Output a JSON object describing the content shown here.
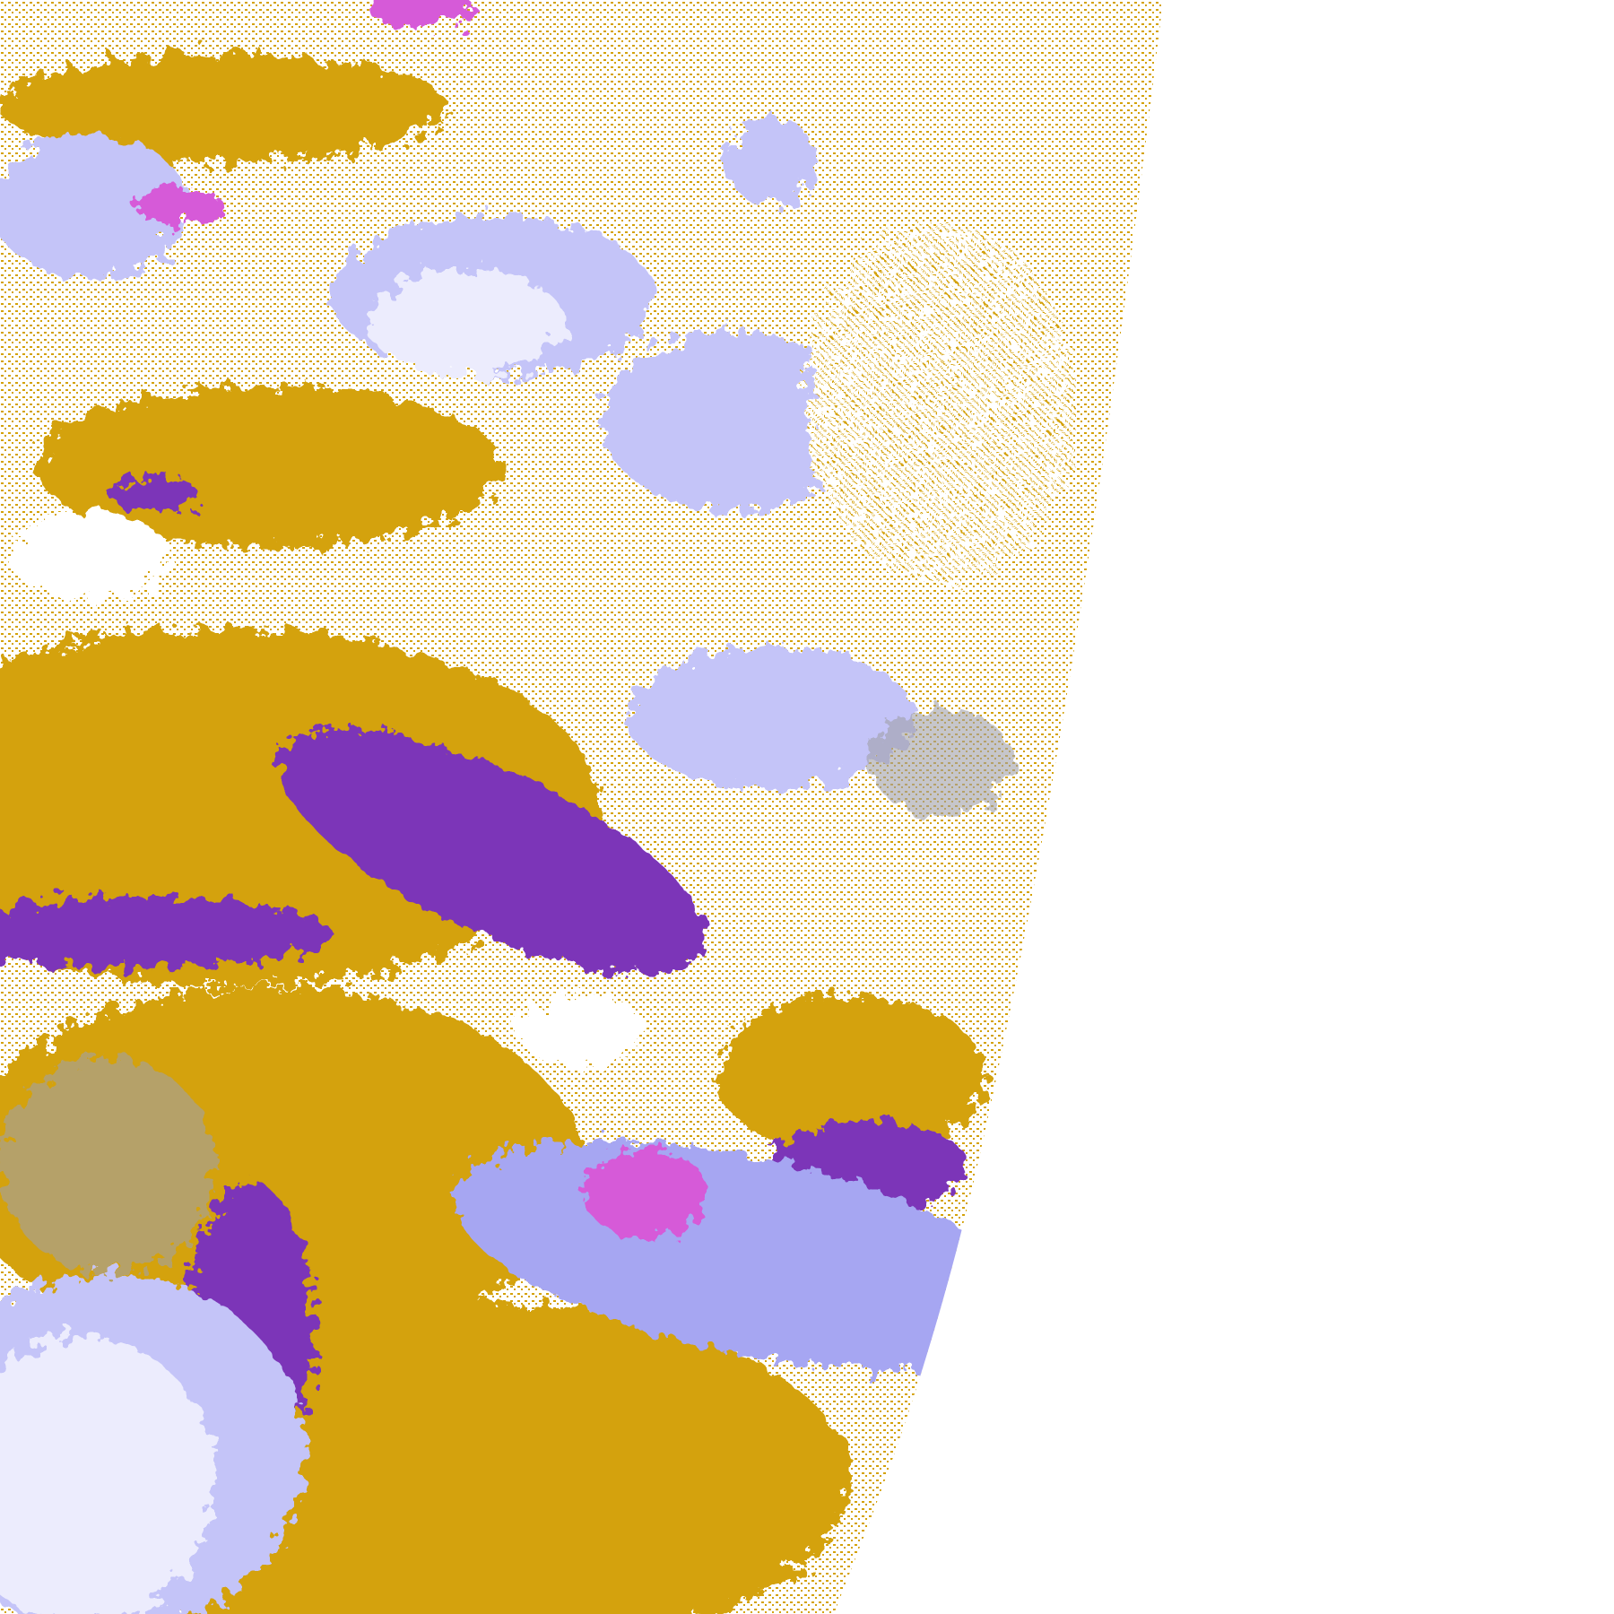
{
  "image": {
    "kind": "satellite cloud-classification swath",
    "colors": {
      "background": "#ffffff",
      "gold": "#d4a20a",
      "purple": "#7b35b8",
      "magenta": "#d65ad8",
      "lavender": "#a6a6f2",
      "pale_lavender": "#ececfd",
      "light_blue": "#c4c4f8",
      "gray": "#a0a0a8"
    }
  }
}
